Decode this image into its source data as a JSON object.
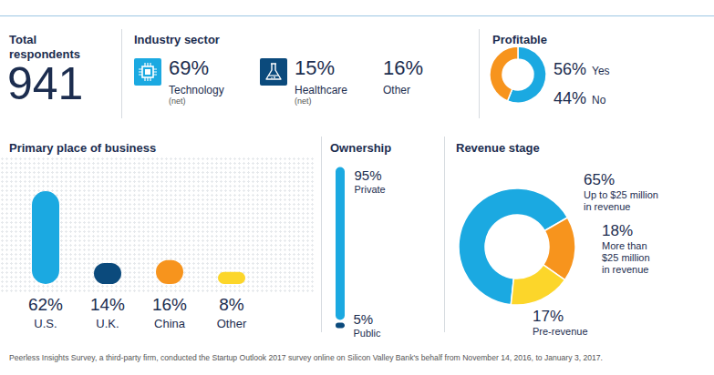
{
  "total_respondents": {
    "title": "Total respondents",
    "value": 941
  },
  "industry_sector": {
    "title": "Industry sector",
    "categories": [
      "Technology",
      "Healthcare",
      "Other"
    ],
    "notes": [
      "(net)",
      "(net)",
      null
    ],
    "values": [
      69,
      15,
      16
    ],
    "value_labels": [
      "69%",
      "15%",
      "16%"
    ]
  },
  "chart_data": [
    {
      "type": "donut",
      "title": "Profitable",
      "categories": [
        "Yes",
        "No"
      ],
      "values": [
        56,
        44
      ],
      "value_labels": [
        "56%",
        "44%"
      ],
      "colors": [
        "#1ba9e1",
        "#f7941d"
      ],
      "data_labels": true
    },
    {
      "type": "bar",
      "title": "Primary place of business",
      "categories": [
        "U.S.",
        "U.K.",
        "China",
        "Other"
      ],
      "values": [
        62,
        14,
        16,
        8
      ],
      "value_labels": [
        "62%",
        "14%",
        "16%",
        "8%"
      ],
      "colors": [
        "#1ba9e1",
        "#0b4a7c",
        "#f7941d",
        "#fcd62a"
      ],
      "data_labels": true,
      "tick_labels": "x"
    },
    {
      "type": "bar",
      "title": "Ownership",
      "stacked": true,
      "categories": [
        null
      ],
      "series": [
        {
          "name": "Public",
          "color": "#0b4a7c",
          "values": [
            5
          ],
          "value_labels": [
            "5%"
          ]
        },
        {
          "name": "Private",
          "color": "#1ba9e1",
          "values": [
            95
          ],
          "value_labels": [
            "95%"
          ]
        }
      ],
      "data_labels": true,
      "tick_labels": false
    },
    {
      "type": "donut",
      "title": "Revenue stage",
      "categories": [
        "Up to $25 million\nin revenue",
        "More than\n$25 million\nin revenue",
        "Pre-revenue"
      ],
      "values": [
        65,
        18,
        17
      ],
      "value_labels": [
        "65%",
        "18%",
        "17%"
      ],
      "colors": [
        "#1ba9e1",
        "#f7941d",
        "#fcd62a"
      ],
      "data_labels": true
    }
  ],
  "footer": "Peerless Insights Survey, a third-party firm, conducted the Startup Outlook 2017 survey online on Silicon Valley Bank's behalf from November 14, 2016, to January 3, 2017."
}
